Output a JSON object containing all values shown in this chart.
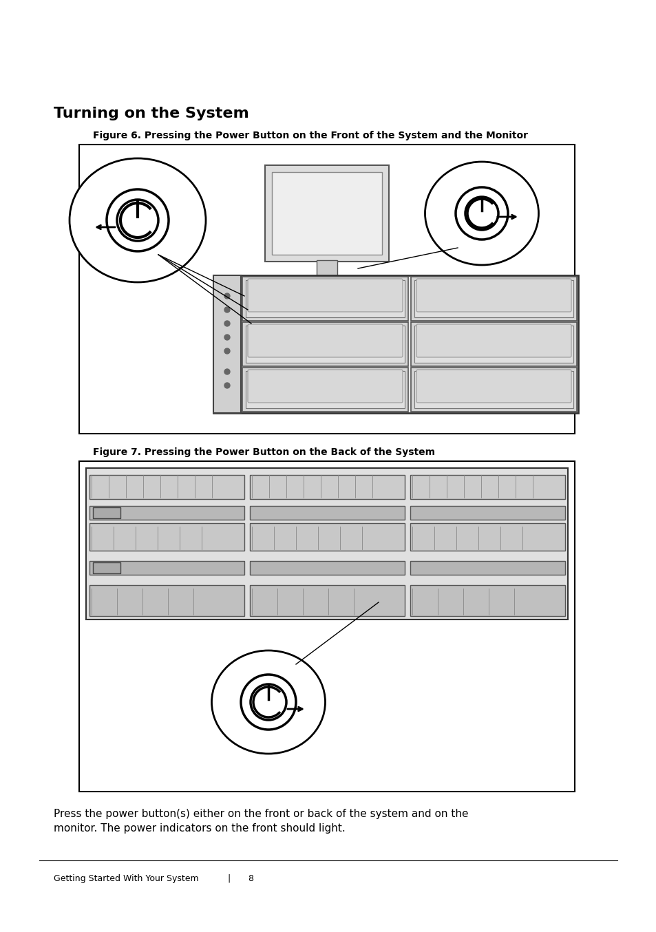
{
  "bg_color": "#ffffff",
  "title": "Turning on the System",
  "fig6_caption": "Figure 6. Pressing the Power Button on the Front of the System and the Monitor",
  "fig7_caption": "Figure 7. Pressing the Power Button on the Back of the System",
  "body_text": "Press the power button(s) either on the front or back of the system and on the\nmonitor. The power indicators on the front should light.",
  "footer_text": "Getting Started With Your System",
  "footer_separator": "|",
  "footer_page": "8",
  "title_fontsize": 16,
  "caption_fontsize": 10,
  "body_fontsize": 11,
  "footer_fontsize": 9
}
